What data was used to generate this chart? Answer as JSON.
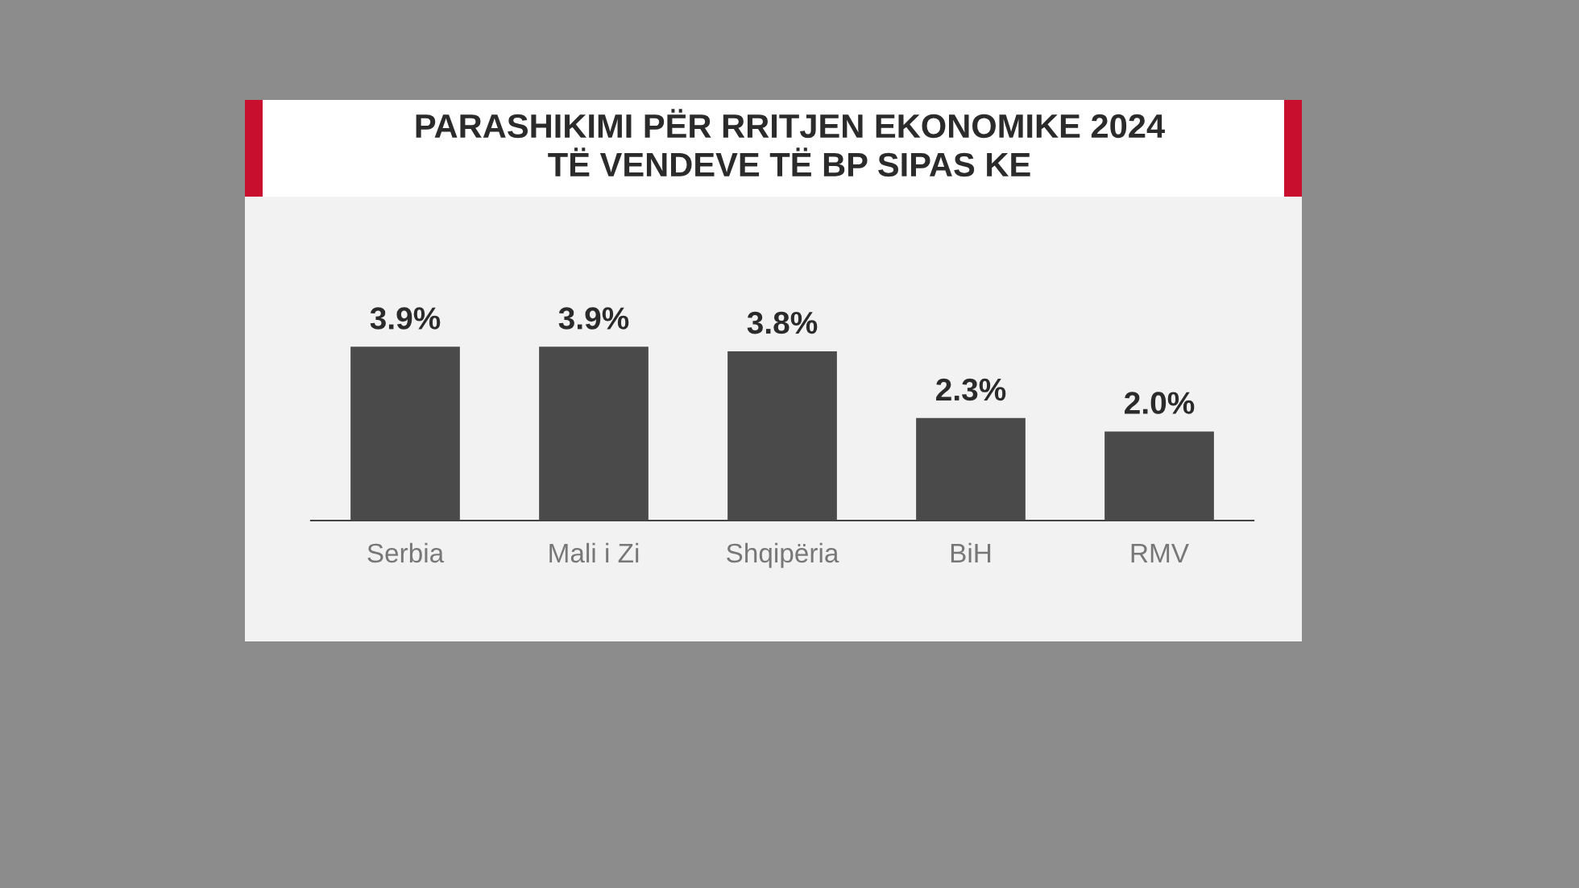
{
  "chart_data": {
    "type": "bar",
    "title": "PARASHIKIMI PËR RRITJEN EKONOMIKE 2024\nTË VENDEVE TË BP SIPAS KE",
    "categories": [
      "Serbia",
      "Mali i Zi",
      "Shqipëria",
      "BiH",
      "RMV"
    ],
    "values": [
      3.9,
      3.9,
      3.8,
      2.3,
      2.0
    ],
    "value_labels": [
      "3.9%",
      "3.9%",
      "3.8%",
      "2.3%",
      "2.0%"
    ],
    "color": "#4a4a4a"
  }
}
